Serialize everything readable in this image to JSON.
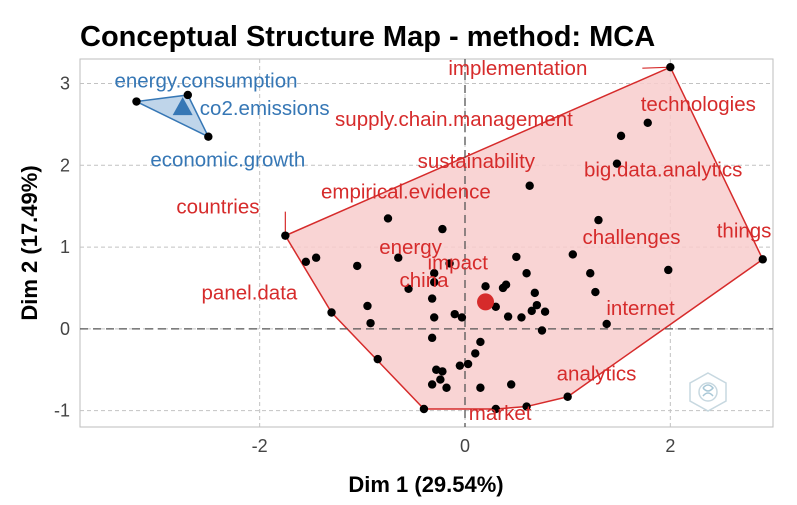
{
  "chart_data": {
    "type": "scatter",
    "title": "Conceptual Structure Map - method: MCA",
    "xlabel": "Dim 1 (29.54%)",
    "ylabel": "Dim 2 (17.49%)",
    "xlim": [
      -3.75,
      3.0
    ],
    "ylim": [
      -1.2,
      3.3
    ],
    "xticks": [
      -2,
      0,
      2
    ],
    "yticks": [
      -1,
      0,
      1,
      2,
      3
    ],
    "grid": true,
    "clusters": [
      {
        "name": "cluster-1",
        "color": "#3677b5",
        "fill": "#a9c7e3",
        "centroid": [
          -2.75,
          2.7
        ],
        "points": [
          [
            -3.2,
            2.78
          ],
          [
            -2.7,
            2.86
          ],
          [
            -2.5,
            2.35
          ]
        ],
        "labels": [
          {
            "text": "energy.consumption",
            "point": [
              -3.2,
              2.78
            ]
          },
          {
            "text": "co2.emissions",
            "point": [
              -2.7,
              2.86
            ]
          },
          {
            "text": "economic.growth",
            "point": [
              -2.5,
              2.35
            ]
          }
        ]
      },
      {
        "name": "cluster-2",
        "color": "#d62b2b",
        "fill": "#f8cdcd",
        "centroid": [
          0.2,
          0.33
        ],
        "points": [
          [
            2.0,
            3.2
          ],
          [
            -1.75,
            1.14
          ],
          [
            -1.55,
            0.82
          ],
          [
            -1.45,
            0.87
          ],
          [
            -1.3,
            0.2
          ],
          [
            -1.05,
            0.77
          ],
          [
            -0.95,
            0.28
          ],
          [
            -0.92,
            0.07
          ],
          [
            -0.85,
            -0.37
          ],
          [
            -0.75,
            1.35
          ],
          [
            -0.65,
            0.87
          ],
          [
            -0.55,
            0.49
          ],
          [
            -0.4,
            -0.98
          ],
          [
            -0.3,
            0.68
          ],
          [
            -0.3,
            0.57
          ],
          [
            -0.3,
            0.14
          ],
          [
            -0.32,
            0.37
          ],
          [
            -0.32,
            -0.11
          ],
          [
            -0.22,
            1.22
          ],
          [
            -0.15,
            0.8
          ],
          [
            -0.22,
            -0.52
          ],
          [
            -0.28,
            -0.5
          ],
          [
            -0.18,
            -0.72
          ],
          [
            -0.24,
            -0.62
          ],
          [
            -0.32,
            -0.68
          ],
          [
            -0.1,
            0.18
          ],
          [
            -0.05,
            -0.45
          ],
          [
            0.03,
            -0.43
          ],
          [
            -0.03,
            0.14
          ],
          [
            0.1,
            -0.3
          ],
          [
            0.15,
            -0.16
          ],
          [
            0.2,
            0.52
          ],
          [
            0.15,
            -0.72
          ],
          [
            0.2,
            0.33
          ],
          [
            0.3,
            -0.98
          ],
          [
            0.3,
            0.27
          ],
          [
            0.37,
            0.5
          ],
          [
            0.4,
            0.54
          ],
          [
            0.42,
            0.15
          ],
          [
            0.45,
            -0.68
          ],
          [
            0.5,
            0.88
          ],
          [
            0.55,
            0.14
          ],
          [
            0.6,
            0.68
          ],
          [
            0.63,
            1.75
          ],
          [
            0.65,
            0.22
          ],
          [
            0.6,
            -0.95
          ],
          [
            0.68,
            0.44
          ],
          [
            0.7,
            0.29
          ],
          [
            0.75,
            -0.02
          ],
          [
            0.78,
            0.21
          ],
          [
            1.0,
            -0.83
          ],
          [
            1.05,
            0.91
          ],
          [
            1.3,
            1.33
          ],
          [
            1.22,
            0.68
          ],
          [
            1.27,
            0.45
          ],
          [
            1.38,
            0.06
          ],
          [
            1.48,
            2.02
          ],
          [
            1.52,
            2.36
          ],
          [
            1.78,
            2.52
          ],
          [
            1.98,
            0.72
          ],
          [
            2.9,
            0.85
          ]
        ],
        "labels": [
          {
            "text": "implementation",
            "point": [
              2.0,
              3.2
            ]
          },
          {
            "text": "technologies",
            "point": [
              1.78,
              2.52
            ]
          },
          {
            "text": "supply.chain.management",
            "point": [
              1.52,
              2.36
            ]
          },
          {
            "text": "sustainability",
            "point": [
              0.63,
              1.75
            ]
          },
          {
            "text": "big.data.analytics",
            "point": [
              1.48,
              2.02
            ]
          },
          {
            "text": "countries",
            "point": [
              -1.75,
              1.14
            ]
          },
          {
            "text": "empirical.evidence",
            "point": [
              -0.75,
              1.35
            ]
          },
          {
            "text": "energy",
            "point": [
              -1.05,
              0.77
            ]
          },
          {
            "text": "impact",
            "point": [
              0.2,
              0.52
            ]
          },
          {
            "text": "challenges",
            "point": [
              1.3,
              1.33
            ]
          },
          {
            "text": "things",
            "point": [
              2.9,
              0.85
            ]
          },
          {
            "text": "china",
            "point": [
              -0.55,
              0.49
            ]
          },
          {
            "text": "panel.data",
            "point": [
              -1.3,
              0.2
            ]
          },
          {
            "text": "internet",
            "point": [
              1.27,
              0.45
            ]
          },
          {
            "text": "analytics",
            "point": [
              1.0,
              -0.83
            ]
          },
          {
            "text": "market",
            "point": [
              0.3,
              -0.98
            ]
          }
        ]
      }
    ]
  }
}
